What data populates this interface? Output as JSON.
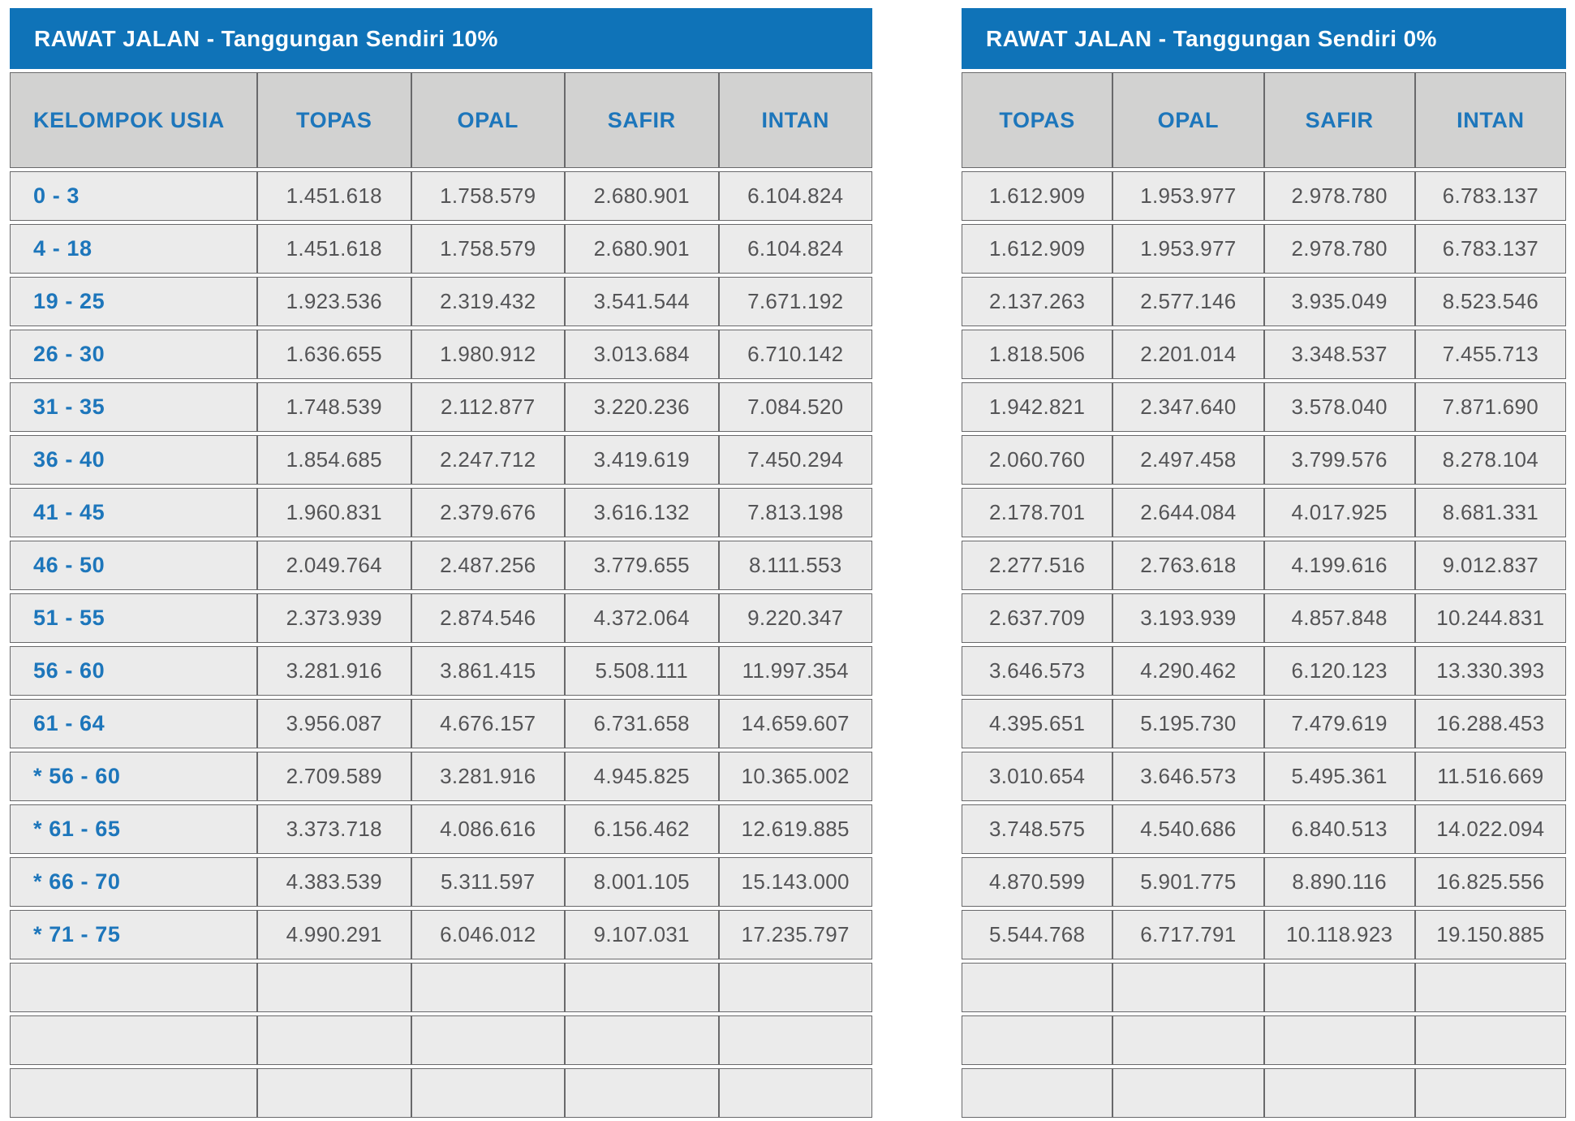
{
  "colors": {
    "title_bar_blue": "#0f73b8",
    "label_blue": "#1d76bb",
    "value_gray": "#545456",
    "header_cell_bg": "#d2d2d1",
    "data_cell_bg": "#ebebeb",
    "grid_line": "#69696b"
  },
  "left_table": {
    "title": "RAWAT JALAN - Tanggungan Sendiri 10%",
    "age_header": "KELOMPOK USIA",
    "plan_headers": [
      "TOPAS",
      "OPAL",
      "SAFIR",
      "INTAN"
    ],
    "rows": [
      {
        "age": "0 - 3",
        "values": [
          "1.451.618",
          "1.758.579",
          "2.680.901",
          "6.104.824"
        ]
      },
      {
        "age": "4 - 18",
        "values": [
          "1.451.618",
          "1.758.579",
          "2.680.901",
          "6.104.824"
        ]
      },
      {
        "age": "19 - 25",
        "values": [
          "1.923.536",
          "2.319.432",
          "3.541.544",
          "7.671.192"
        ]
      },
      {
        "age": "26 - 30",
        "values": [
          "1.636.655",
          "1.980.912",
          "3.013.684",
          "6.710.142"
        ]
      },
      {
        "age": "31 - 35",
        "values": [
          "1.748.539",
          "2.112.877",
          "3.220.236",
          "7.084.520"
        ]
      },
      {
        "age": "36 - 40",
        "values": [
          "1.854.685",
          "2.247.712",
          "3.419.619",
          "7.450.294"
        ]
      },
      {
        "age": "41 - 45",
        "values": [
          "1.960.831",
          "2.379.676",
          "3.616.132",
          "7.813.198"
        ]
      },
      {
        "age": "46 - 50",
        "values": [
          "2.049.764",
          "2.487.256",
          "3.779.655",
          "8.111.553"
        ]
      },
      {
        "age": "51 - 55",
        "values": [
          "2.373.939",
          "2.874.546",
          "4.372.064",
          "9.220.347"
        ]
      },
      {
        "age": "56 - 60",
        "values": [
          "3.281.916",
          "3.861.415",
          "5.508.111",
          "11.997.354"
        ]
      },
      {
        "age": "61 - 64",
        "values": [
          "3.956.087",
          "4.676.157",
          "6.731.658",
          "14.659.607"
        ]
      },
      {
        "age": "* 56 - 60",
        "values": [
          "2.709.589",
          "3.281.916",
          "4.945.825",
          "10.365.002"
        ]
      },
      {
        "age": "* 61 - 65",
        "values": [
          "3.373.718",
          "4.086.616",
          "6.156.462",
          "12.619.885"
        ]
      },
      {
        "age": "* 66 - 70",
        "values": [
          "4.383.539",
          "5.311.597",
          "8.001.105",
          "15.143.000"
        ]
      },
      {
        "age": "* 71 - 75",
        "values": [
          "4.990.291",
          "6.046.012",
          "9.107.031",
          "17.235.797"
        ]
      }
    ],
    "empty_rows": 3
  },
  "right_table": {
    "title": "RAWAT JALAN - Tanggungan Sendiri 0%",
    "plan_headers": [
      "TOPAS",
      "OPAL",
      "SAFIR",
      "INTAN"
    ],
    "rows": [
      [
        "1.612.909",
        "1.953.977",
        "2.978.780",
        "6.783.137"
      ],
      [
        "1.612.909",
        "1.953.977",
        "2.978.780",
        "6.783.137"
      ],
      [
        "2.137.263",
        "2.577.146",
        "3.935.049",
        "8.523.546"
      ],
      [
        "1.818.506",
        "2.201.014",
        "3.348.537",
        "7.455.713"
      ],
      [
        "1.942.821",
        "2.347.640",
        "3.578.040",
        "7.871.690"
      ],
      [
        "2.060.760",
        "2.497.458",
        "3.799.576",
        "8.278.104"
      ],
      [
        "2.178.701",
        "2.644.084",
        "4.017.925",
        "8.681.331"
      ],
      [
        "2.277.516",
        "2.763.618",
        "4.199.616",
        "9.012.837"
      ],
      [
        "2.637.709",
        "3.193.939",
        "4.857.848",
        "10.244.831"
      ],
      [
        "3.646.573",
        "4.290.462",
        "6.120.123",
        "13.330.393"
      ],
      [
        "4.395.651",
        "5.195.730",
        "7.479.619",
        "16.288.453"
      ],
      [
        "3.010.654",
        "3.646.573",
        "5.495.361",
        "11.516.669"
      ],
      [
        "3.748.575",
        "4.540.686",
        "6.840.513",
        "14.022.094"
      ],
      [
        "4.870.599",
        "5.901.775",
        "8.890.116",
        "16.825.556"
      ],
      [
        "5.544.768",
        "6.717.791",
        "10.118.923",
        "19.150.885"
      ]
    ],
    "empty_rows": 3
  }
}
